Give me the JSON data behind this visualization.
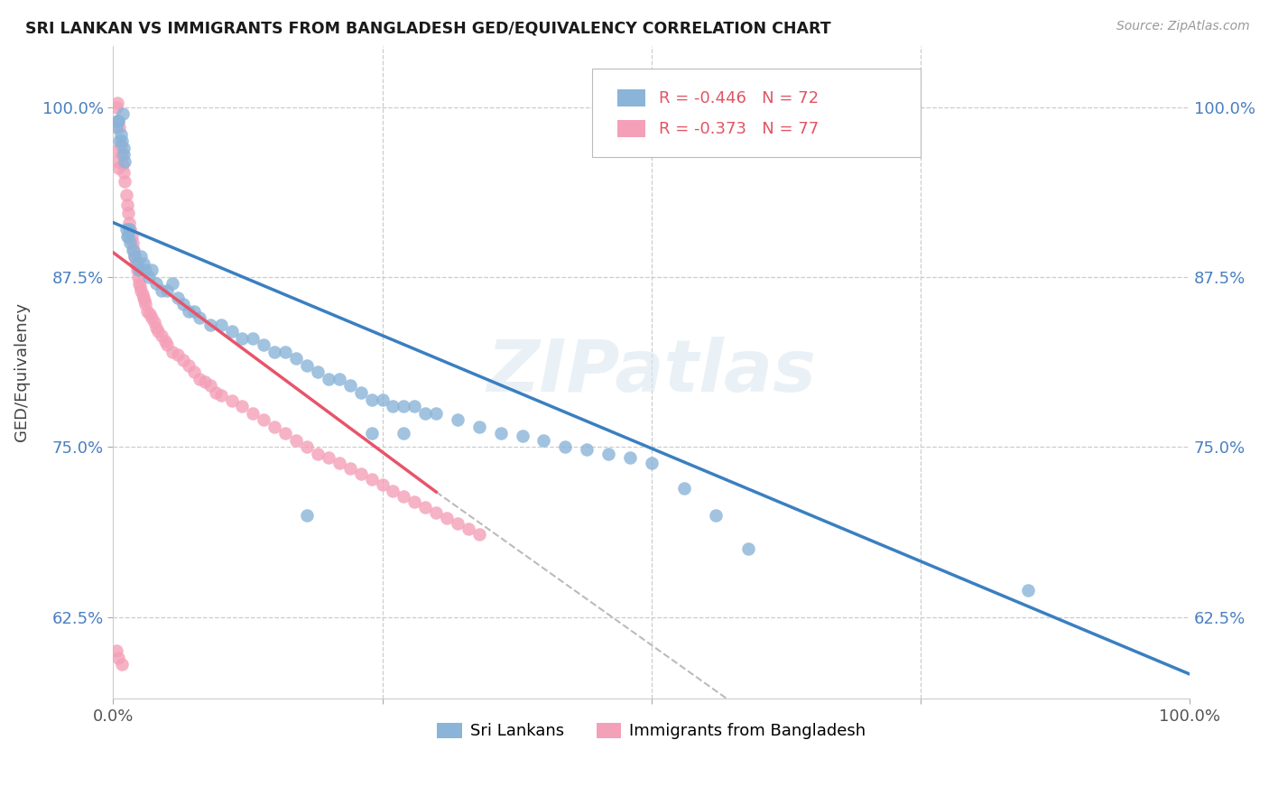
{
  "title": "SRI LANKAN VS IMMIGRANTS FROM BANGLADESH GED/EQUIVALENCY CORRELATION CHART",
  "source": "Source: ZipAtlas.com",
  "ylabel": "GED/Equivalency",
  "xlim": [
    0.0,
    1.0
  ],
  "ylim": [
    0.565,
    1.045
  ],
  "yticks": [
    0.625,
    0.75,
    0.875,
    1.0
  ],
  "ytick_labels": [
    "62.5%",
    "75.0%",
    "87.5%",
    "100.0%"
  ],
  "blue_R": "-0.446",
  "blue_N": "72",
  "pink_R": "-0.373",
  "pink_N": "77",
  "blue_color": "#8ab4d8",
  "pink_color": "#f4a0b8",
  "blue_line_color": "#3a7fc1",
  "pink_line_color": "#e8546a",
  "watermark": "ZIPatlas",
  "legend_label_blue": "Sri Lankans",
  "legend_label_pink": "Immigrants from Bangladesh",
  "blue_line_x0": 0.0,
  "blue_line_y0": 0.915,
  "blue_line_x1": 1.0,
  "blue_line_y1": 0.583,
  "pink_line_x0": 0.0,
  "pink_line_y0": 0.893,
  "pink_line_x1": 0.3,
  "pink_line_y1": 0.717,
  "dashed_line_x0": 0.3,
  "dashed_line_y0": 0.717,
  "dashed_line_x1": 0.57,
  "dashed_line_y1": 0.565,
  "blue_scatter_x": [
    0.003,
    0.004,
    0.005,
    0.006,
    0.007,
    0.008,
    0.009,
    0.01,
    0.01,
    0.011,
    0.012,
    0.013,
    0.014,
    0.015,
    0.016,
    0.018,
    0.02,
    0.022,
    0.024,
    0.026,
    0.028,
    0.03,
    0.033,
    0.036,
    0.04,
    0.045,
    0.05,
    0.055,
    0.06,
    0.065,
    0.07,
    0.075,
    0.08,
    0.09,
    0.1,
    0.11,
    0.12,
    0.13,
    0.14,
    0.15,
    0.16,
    0.17,
    0.18,
    0.19,
    0.2,
    0.21,
    0.22,
    0.23,
    0.24,
    0.25,
    0.26,
    0.27,
    0.28,
    0.29,
    0.3,
    0.32,
    0.34,
    0.36,
    0.38,
    0.4,
    0.42,
    0.44,
    0.46,
    0.48,
    0.5,
    0.53,
    0.56,
    0.59,
    0.85,
    0.24,
    0.27,
    0.18
  ],
  "blue_scatter_y": [
    0.985,
    0.99,
    0.99,
    0.975,
    0.98,
    0.975,
    0.995,
    0.97,
    0.965,
    0.96,
    0.91,
    0.905,
    0.905,
    0.91,
    0.9,
    0.895,
    0.89,
    0.885,
    0.88,
    0.89,
    0.885,
    0.88,
    0.875,
    0.88,
    0.87,
    0.865,
    0.865,
    0.87,
    0.86,
    0.855,
    0.85,
    0.85,
    0.845,
    0.84,
    0.84,
    0.835,
    0.83,
    0.83,
    0.825,
    0.82,
    0.82,
    0.815,
    0.81,
    0.805,
    0.8,
    0.8,
    0.795,
    0.79,
    0.785,
    0.785,
    0.78,
    0.78,
    0.78,
    0.775,
    0.775,
    0.77,
    0.765,
    0.76,
    0.758,
    0.755,
    0.75,
    0.748,
    0.745,
    0.742,
    0.738,
    0.72,
    0.7,
    0.675,
    0.645,
    0.76,
    0.76,
    0.7
  ],
  "pink_scatter_x": [
    0.003,
    0.004,
    0.005,
    0.006,
    0.007,
    0.008,
    0.009,
    0.01,
    0.011,
    0.012,
    0.013,
    0.014,
    0.015,
    0.016,
    0.017,
    0.018,
    0.019,
    0.02,
    0.021,
    0.022,
    0.023,
    0.024,
    0.025,
    0.026,
    0.027,
    0.028,
    0.029,
    0.03,
    0.032,
    0.034,
    0.036,
    0.038,
    0.04,
    0.042,
    0.045,
    0.048,
    0.05,
    0.055,
    0.06,
    0.065,
    0.07,
    0.075,
    0.08,
    0.085,
    0.09,
    0.095,
    0.1,
    0.11,
    0.12,
    0.13,
    0.14,
    0.15,
    0.16,
    0.17,
    0.18,
    0.19,
    0.2,
    0.21,
    0.22,
    0.23,
    0.24,
    0.25,
    0.26,
    0.27,
    0.28,
    0.29,
    0.3,
    0.31,
    0.32,
    0.33,
    0.34,
    0.003,
    0.004,
    0.005,
    0.003,
    0.005,
    0.008
  ],
  "pink_scatter_y": [
    1.0,
    1.003,
    0.99,
    0.985,
    0.972,
    0.965,
    0.958,
    0.952,
    0.945,
    0.935,
    0.928,
    0.922,
    0.915,
    0.91,
    0.905,
    0.9,
    0.895,
    0.89,
    0.885,
    0.88,
    0.875,
    0.87,
    0.868,
    0.865,
    0.862,
    0.86,
    0.858,
    0.855,
    0.85,
    0.848,
    0.845,
    0.842,
    0.838,
    0.835,
    0.832,
    0.828,
    0.825,
    0.82,
    0.818,
    0.814,
    0.81,
    0.805,
    0.8,
    0.798,
    0.795,
    0.79,
    0.788,
    0.784,
    0.78,
    0.775,
    0.77,
    0.765,
    0.76,
    0.755,
    0.75,
    0.745,
    0.742,
    0.738,
    0.734,
    0.73,
    0.726,
    0.722,
    0.718,
    0.714,
    0.71,
    0.706,
    0.702,
    0.698,
    0.694,
    0.69,
    0.686,
    0.968,
    0.96,
    0.955,
    0.6,
    0.595,
    0.59
  ]
}
